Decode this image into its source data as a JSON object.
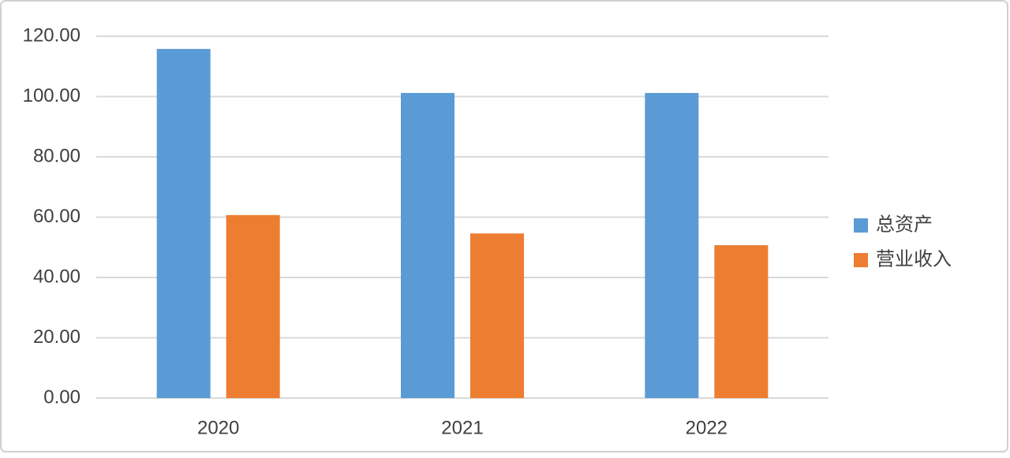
{
  "chart_data": {
    "type": "bar",
    "categories": [
      "2020",
      "2021",
      "2022"
    ],
    "series": [
      {
        "name": "总资产",
        "color": "#5b9bd5",
        "values": [
          115.8,
          101.2,
          101.2
        ]
      },
      {
        "name": "营业收入",
        "color": "#ed7d31",
        "values": [
          60.7,
          54.6,
          50.7
        ]
      }
    ],
    "ylim": [
      0,
      120
    ],
    "yticks": [
      {
        "value": 0,
        "label": "0.00"
      },
      {
        "value": 20,
        "label": "20.00"
      },
      {
        "value": 40,
        "label": "40.00"
      },
      {
        "value": 60,
        "label": "60.00"
      },
      {
        "value": 80,
        "label": "80.00"
      },
      {
        "value": 100,
        "label": "100.00"
      },
      {
        "value": 120,
        "label": "120.00"
      }
    ],
    "grid": true,
    "legend": "right"
  }
}
